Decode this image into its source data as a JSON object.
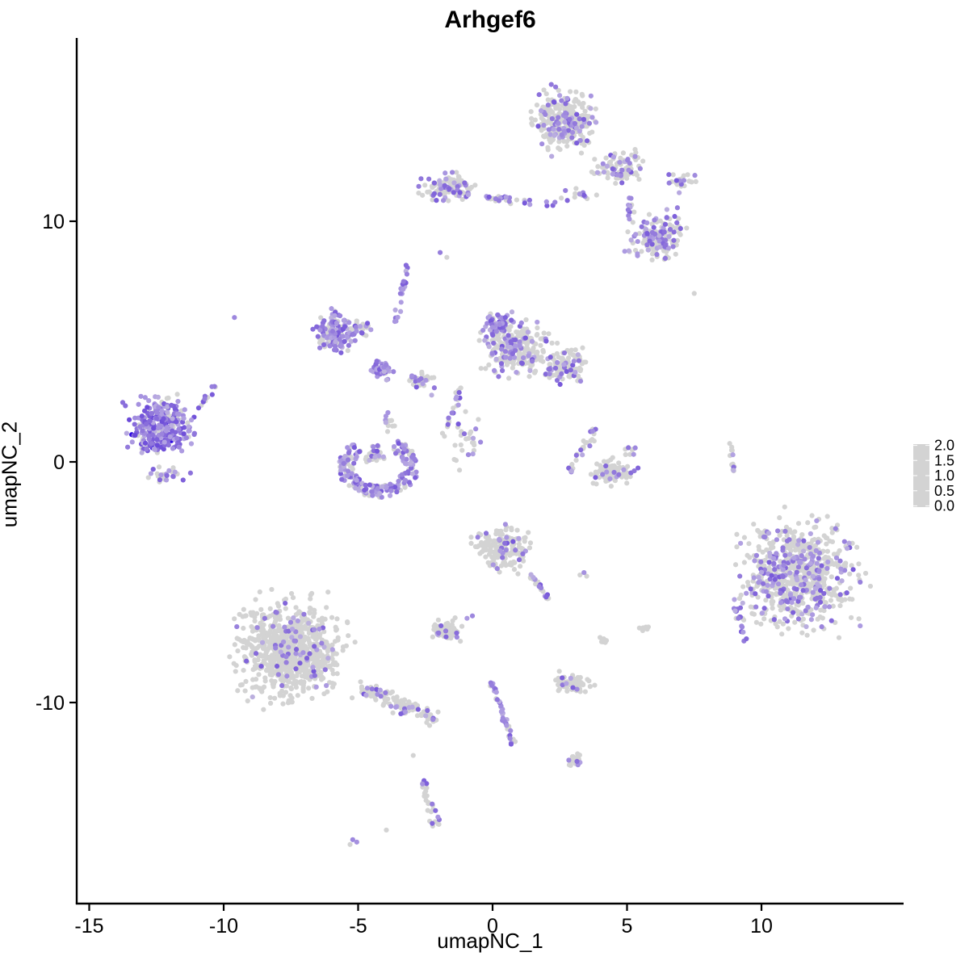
{
  "chart_data": {
    "type": "scatter",
    "title": "Arhgef6",
    "xlabel": "umapNC_1",
    "ylabel": "umapNC_2",
    "xlim": [
      -15.5,
      15.3
    ],
    "ylim": [
      -18.4,
      17.6
    ],
    "x_ticks": [
      -15,
      -10,
      -5,
      0,
      5,
      10
    ],
    "y_ticks": [
      10,
      0,
      -10
    ],
    "grid": false,
    "point_color_low": "#D3D3D3",
    "point_color_high": "#2A06E0",
    "palette_stops": [
      "#D3D3D3",
      "#B3A3E2",
      "#8F75DB",
      "#6644D9",
      "#2A06E0"
    ],
    "palette_values": [
      0.0,
      0.5,
      1.0,
      1.5,
      2.0
    ],
    "legend": {
      "position": "right",
      "labels": [
        "2.0",
        "1.5",
        "1.0",
        "0.5",
        "0.0"
      ]
    },
    "clusters": [
      {
        "id": "top-main",
        "shape": "blob",
        "x": 2.7,
        "y": 14.2,
        "rx": 1.5,
        "ry": 1.6,
        "n": 280,
        "f": 0.3
      },
      {
        "id": "top-right-lobe",
        "shape": "blob",
        "x": 4.65,
        "y": 12.3,
        "rx": 1.2,
        "ry": 0.95,
        "n": 85,
        "f": 0.25
      },
      {
        "id": "top-right-sparse",
        "shape": "blob",
        "x": 7.0,
        "y": 11.6,
        "rx": 0.9,
        "ry": 0.6,
        "n": 22,
        "f": 0.3
      },
      {
        "id": "band-left",
        "shape": "blob",
        "x": -1.6,
        "y": 11.4,
        "rx": 1.35,
        "ry": 0.8,
        "n": 115,
        "f": 0.35
      },
      {
        "id": "band-chain",
        "shape": "strand",
        "x1": -0.3,
        "y1": 11.0,
        "x2": 2.3,
        "y2": 10.7,
        "w": 0.25,
        "n": 30,
        "f": 0.55
      },
      {
        "id": "band-mid-sparse",
        "shape": "blob",
        "x": 3.2,
        "y": 11.1,
        "rx": 0.9,
        "ry": 0.5,
        "n": 14,
        "f": 0.4
      },
      {
        "id": "band-right",
        "shape": "blob",
        "x": 6.1,
        "y": 9.4,
        "rx": 1.4,
        "ry": 1.35,
        "n": 150,
        "f": 0.42
      },
      {
        "id": "band-right-strand",
        "shape": "strand",
        "x1": 5.1,
        "y1": 11.0,
        "x2": 5.1,
        "y2": 10.1,
        "w": 0.1,
        "n": 10,
        "f": 0.8
      },
      {
        "id": "lone-a",
        "shape": "points",
        "pts": [
          [
            -1.95,
            8.7,
            0.9
          ],
          [
            -1.7,
            8.5,
            0
          ]
        ]
      },
      {
        "id": "lone-b",
        "shape": "points",
        "pts": [
          [
            -9.6,
            6.0,
            0.8
          ]
        ]
      },
      {
        "id": "lone-c",
        "shape": "points",
        "pts": [
          [
            7.5,
            7.0,
            0
          ]
        ]
      },
      {
        "id": "mid-left",
        "shape": "blob",
        "x": -5.9,
        "y": 5.4,
        "rx": 1.1,
        "ry": 1.1,
        "n": 130,
        "f": 0.72
      },
      {
        "id": "mid-left-ext",
        "shape": "blob",
        "x": -4.9,
        "y": 5.6,
        "rx": 0.7,
        "ry": 0.5,
        "n": 30,
        "f": 0.35
      },
      {
        "id": "mid-strand",
        "shape": "strand",
        "x1": -3.6,
        "y1": 5.8,
        "x2": -3.1,
        "y2": 8.6,
        "w": 0.12,
        "n": 20,
        "f": 0.8
      },
      {
        "id": "knot",
        "shape": "blob",
        "x": -4.1,
        "y": 3.8,
        "rx": 0.55,
        "ry": 0.55,
        "n": 60,
        "f": 0.85
      },
      {
        "id": "knot-scatter",
        "shape": "blob",
        "x": -2.7,
        "y": 3.4,
        "rx": 0.9,
        "ry": 0.8,
        "n": 28,
        "f": 0.35
      },
      {
        "id": "central",
        "shape": "blob",
        "x": 0.9,
        "y": 4.7,
        "rx": 1.6,
        "ry": 1.5,
        "n": 260,
        "f": 0.3
      },
      {
        "id": "central-dense",
        "shape": "blob",
        "x": 0.2,
        "y": 5.7,
        "rx": 0.7,
        "ry": 0.7,
        "n": 70,
        "f": 0.75
      },
      {
        "id": "central-right",
        "shape": "blob",
        "x": 2.7,
        "y": 4.0,
        "rx": 1.2,
        "ry": 1.0,
        "n": 110,
        "f": 0.32
      },
      {
        "id": "central-tail",
        "shape": "strand",
        "x1": -1.2,
        "y1": 3.1,
        "x2": -1.8,
        "y2": 1.1,
        "w": 0.2,
        "n": 22,
        "f": 0.45
      },
      {
        "id": "central-tail-scatter",
        "shape": "blob",
        "x": -1.0,
        "y": 0.9,
        "rx": 0.75,
        "ry": 1.5,
        "n": 26,
        "f": 0.35
      },
      {
        "id": "left",
        "shape": "blob",
        "x": -12.3,
        "y": 1.5,
        "rx": 1.6,
        "ry": 1.5,
        "n": 330,
        "f": 0.8,
        "vmax": 2.0,
        "dark": 6
      },
      {
        "id": "left-tail",
        "shape": "strand",
        "x1": -11.0,
        "y1": 2.2,
        "x2": -10.3,
        "y2": 3.2,
        "w": 0.15,
        "n": 12,
        "f": 0.7
      },
      {
        "id": "left-spray",
        "shape": "blob",
        "x": -12.2,
        "y": -0.5,
        "rx": 1.2,
        "ry": 0.5,
        "n": 25,
        "f": 0.45
      },
      {
        "id": "cup",
        "shape": "ring",
        "x": -4.25,
        "y": -0.2,
        "r_in": 0.6,
        "r_out": 1.5,
        "a1": 130,
        "a2": 420,
        "n": 200,
        "f": 0.72
      },
      {
        "id": "cup-fill",
        "shape": "blob",
        "x": -4.4,
        "y": 0.3,
        "rx": 0.8,
        "ry": 0.5,
        "n": 35,
        "f": 0.25
      },
      {
        "id": "cup-top-scatter",
        "shape": "strand",
        "x1": -3.8,
        "y1": 1.2,
        "x2": -3.9,
        "y2": 2.2,
        "w": 0.3,
        "n": 12,
        "f": 0.4
      },
      {
        "id": "swoosh-core",
        "shape": "blob",
        "x": 4.4,
        "y": -0.4,
        "rx": 1.15,
        "ry": 0.7,
        "n": 85,
        "f": 0.12
      },
      {
        "id": "swoosh-arc",
        "shape": "strand",
        "x1": 2.85,
        "y1": -0.4,
        "x2": 3.9,
        "y2": 1.4,
        "w": 0.3,
        "n": 28,
        "f": 0.5
      },
      {
        "id": "swoosh-right-dots",
        "shape": "blob",
        "x": 5.2,
        "y": 0.45,
        "rx": 0.4,
        "ry": 0.5,
        "n": 8,
        "f": 0.4
      },
      {
        "id": "right-strand",
        "shape": "strand",
        "x1": 8.8,
        "y1": 1.1,
        "x2": 9.0,
        "y2": -0.7,
        "w": 0.1,
        "n": 13,
        "f": 0.1
      },
      {
        "id": "right-big",
        "shape": "blob",
        "x": 11.3,
        "y": -4.7,
        "rx": 2.9,
        "ry": 2.95,
        "n": 750,
        "f": 0.28
      },
      {
        "id": "right-big-streak",
        "shape": "strand",
        "x1": 8.95,
        "y1": -5.5,
        "x2": 9.4,
        "y2": -7.5,
        "w": 0.15,
        "n": 14,
        "f": 0.8
      },
      {
        "id": "bottom-left",
        "shape": "blob",
        "x": -7.6,
        "y": -7.8,
        "rx": 2.65,
        "ry": 2.75,
        "n": 850,
        "f": 0.07
      },
      {
        "id": "bottom-left-tail",
        "shape": "strand",
        "x1": -5.0,
        "y1": -9.4,
        "x2": -2.1,
        "y2": -10.7,
        "w": 0.55,
        "n": 120,
        "f": 0.22
      },
      {
        "id": "bottom-mid",
        "shape": "blob",
        "x": 0.4,
        "y": -3.6,
        "rx": 1.35,
        "ry": 1.2,
        "n": 190,
        "f": 0.11
      },
      {
        "id": "bottom-mid-tail",
        "shape": "strand",
        "x1": 1.35,
        "y1": -4.6,
        "x2": 2.1,
        "y2": -5.7,
        "w": 0.18,
        "n": 25,
        "f": 0.35
      },
      {
        "id": "small-left",
        "shape": "blob",
        "x": -1.75,
        "y": -7.0,
        "rx": 0.8,
        "ry": 0.65,
        "n": 60,
        "f": 0.22
      },
      {
        "id": "small-left-pair",
        "shape": "points",
        "pts": [
          [
            -0.75,
            -6.4,
            0.8
          ],
          [
            -0.95,
            -6.5,
            0.6
          ]
        ]
      },
      {
        "id": "tiny-pair",
        "shape": "points",
        "pts": [
          [
            3.4,
            -4.6,
            0.7
          ],
          [
            3.25,
            -4.7,
            0
          ],
          [
            3.5,
            -4.75,
            0
          ]
        ]
      },
      {
        "id": "tiny-gray-a",
        "shape": "blob",
        "x": 4.1,
        "y": -7.35,
        "rx": 0.35,
        "ry": 0.3,
        "n": 8,
        "f": 0
      },
      {
        "id": "tiny-gray-b",
        "shape": "blob",
        "x": 5.7,
        "y": -6.9,
        "rx": 0.3,
        "ry": 0.25,
        "n": 7,
        "f": 0
      },
      {
        "id": "strand-bc",
        "shape": "strand",
        "x1": -0.05,
        "y1": -9.1,
        "x2": 0.8,
        "y2": -11.8,
        "w": 0.12,
        "n": 45,
        "f": 0.7
      },
      {
        "id": "small-right",
        "shape": "blob",
        "x": 3.1,
        "y": -9.2,
        "rx": 0.9,
        "ry": 0.55,
        "n": 70,
        "f": 0.13
      },
      {
        "id": "small-blob",
        "shape": "blob",
        "x": 3.05,
        "y": -12.35,
        "rx": 0.5,
        "ry": 0.4,
        "n": 22,
        "f": 0.18
      },
      {
        "id": "bottom-strand",
        "shape": "strand",
        "x1": -2.65,
        "y1": -13.2,
        "x2": -2.1,
        "y2": -15.1,
        "w": 0.3,
        "n": 28,
        "f": 0.12
      },
      {
        "id": "bottom-pair",
        "shape": "points",
        "pts": [
          [
            -5.2,
            -15.7,
            0.8
          ],
          [
            -5.05,
            -15.8,
            0.7
          ],
          [
            -5.3,
            -15.9,
            0
          ]
        ]
      },
      {
        "id": "lone-bottom",
        "shape": "points",
        "pts": [
          [
            -2.95,
            -12.2,
            0
          ],
          [
            -3.95,
            -15.3,
            0
          ]
        ]
      }
    ]
  }
}
